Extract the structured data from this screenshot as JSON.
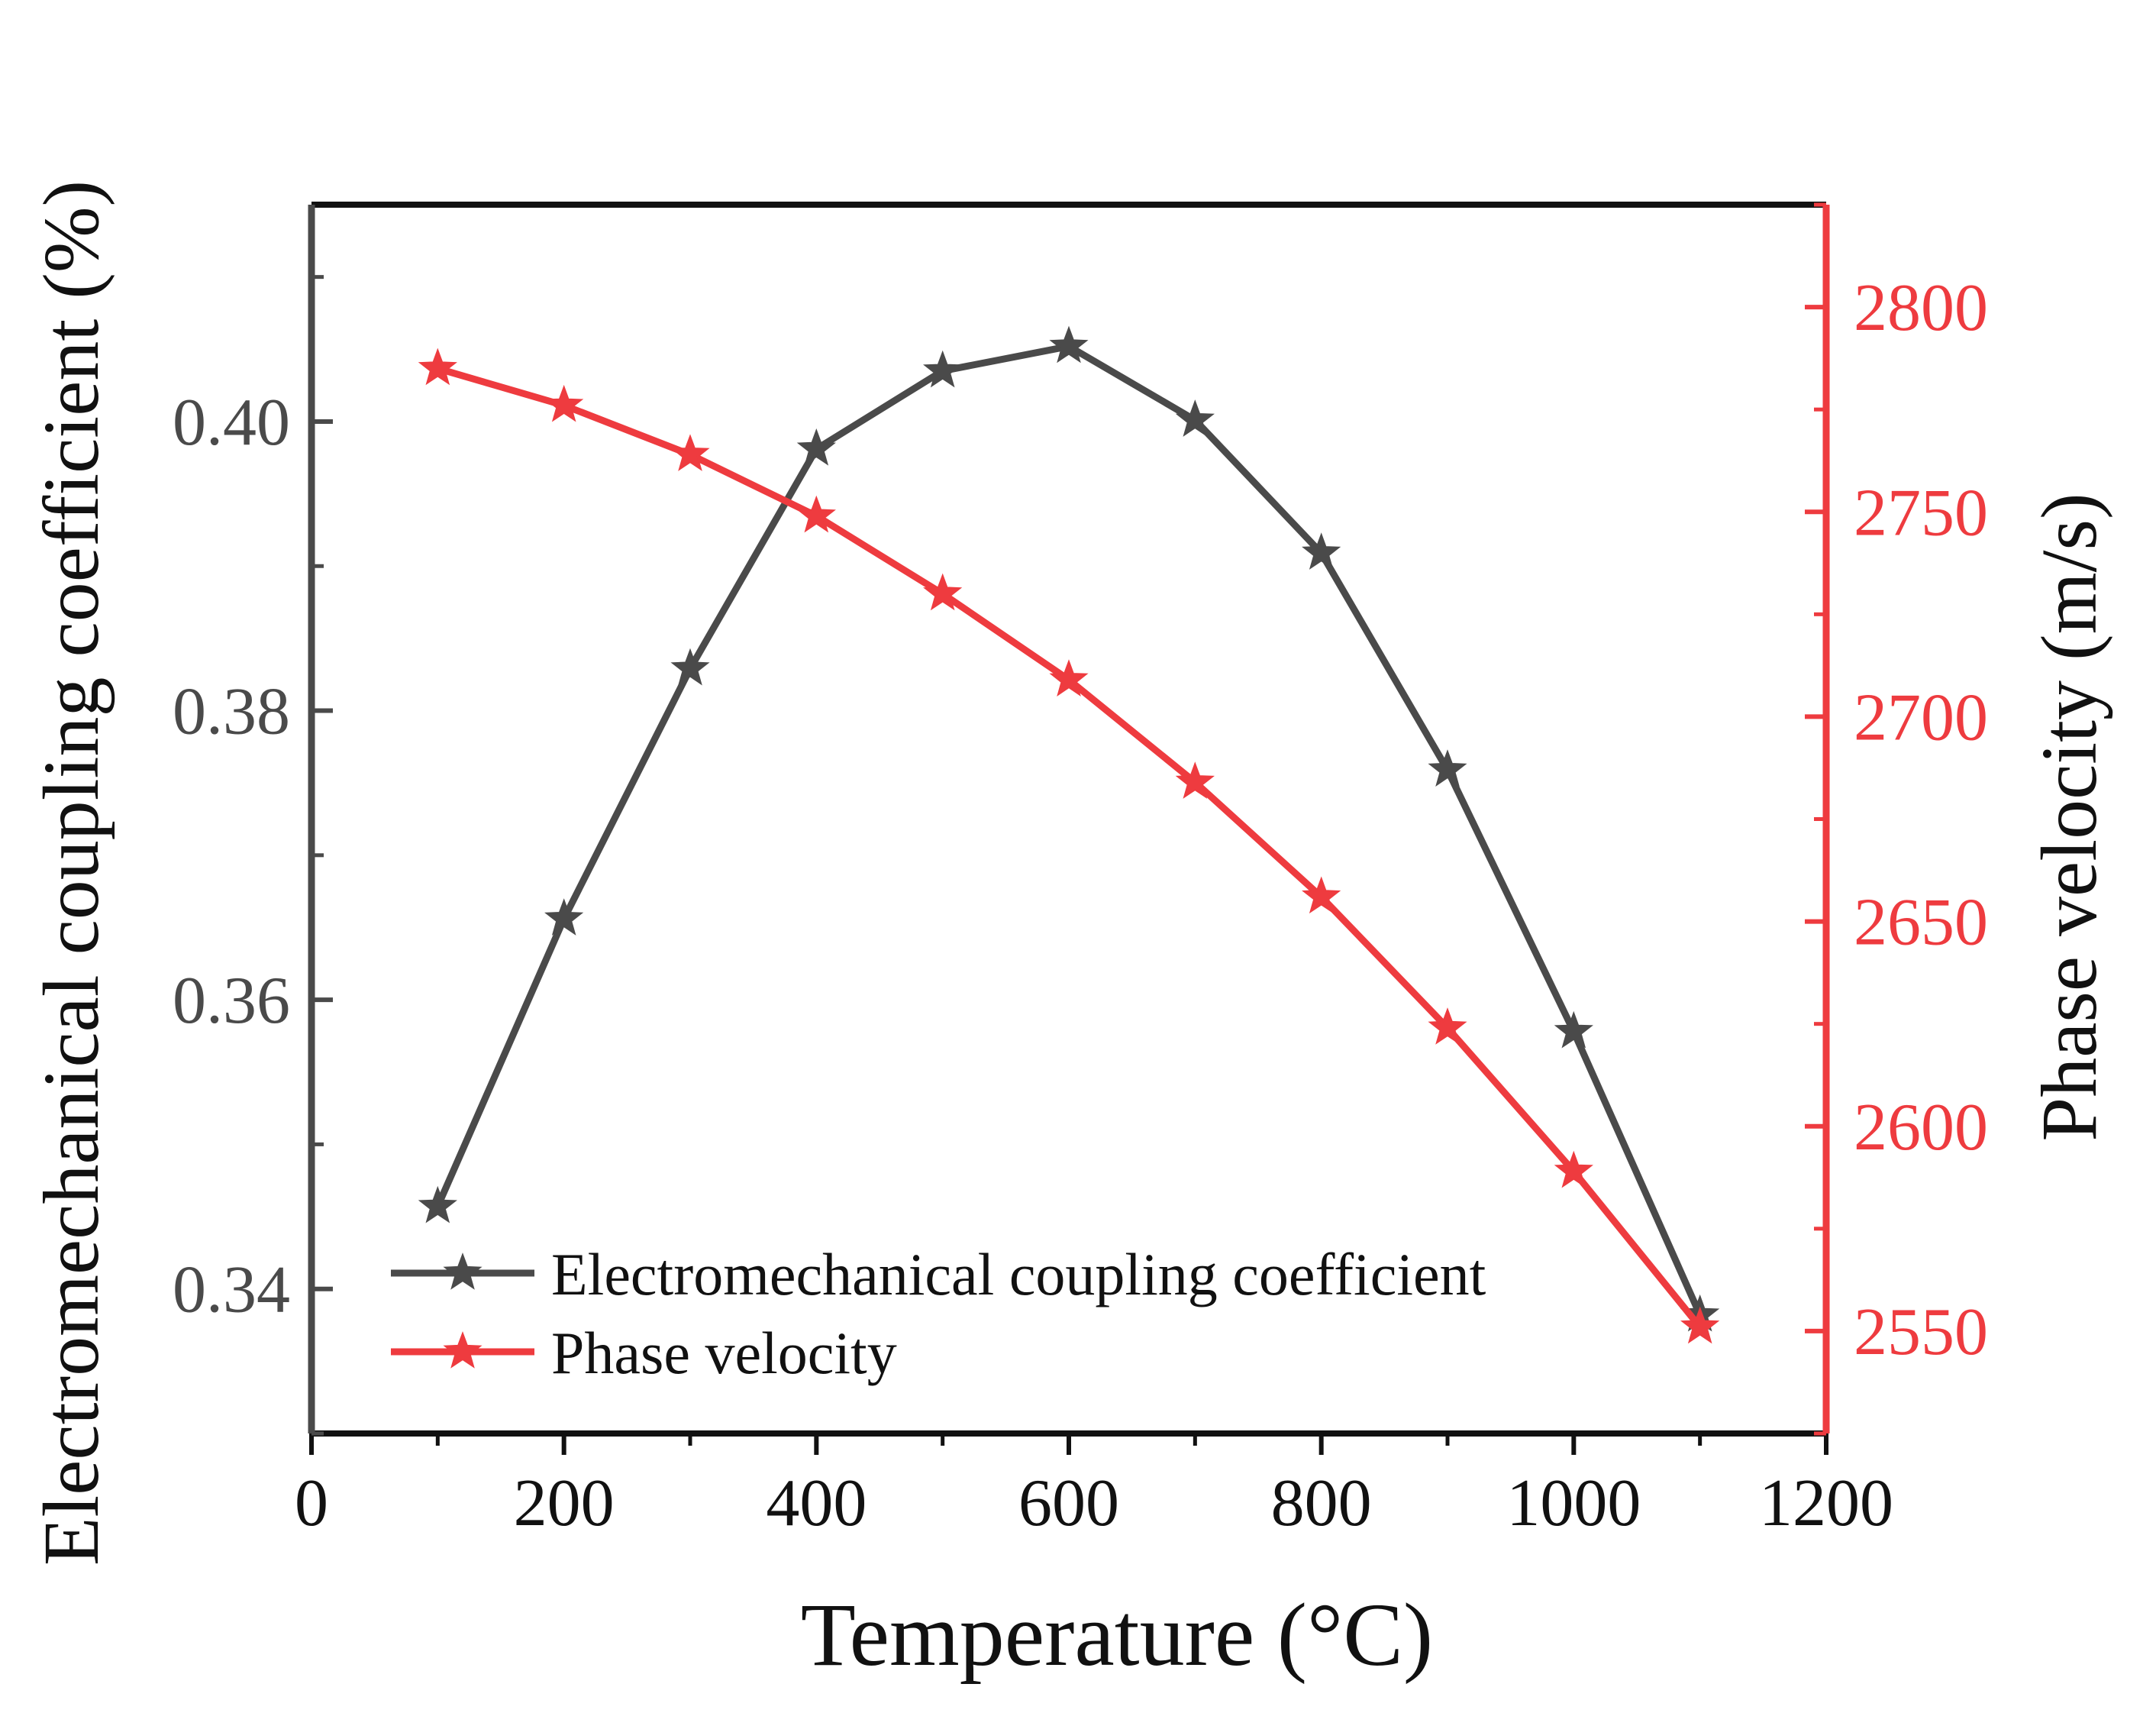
{
  "colors": {
    "left": "#4a4a4a",
    "right": "#ee3b3f",
    "axis": "#222222",
    "background": "#ffffff"
  },
  "chart_data": {
    "type": "line",
    "xlabel": "Temperature (°C)",
    "ylabel_left": "Electromechanical coupling coefficient (%)",
    "ylabel_right": "Phase velocity (m/s)",
    "xlim": [
      0,
      1200
    ],
    "ylim_left": [
      0.33,
      0.415
    ],
    "ylim_right": [
      2525,
      2825
    ],
    "x_ticks": [
      0,
      200,
      400,
      600,
      800,
      1000,
      1200
    ],
    "x_tick_labels": [
      "0",
      "200",
      "400",
      "600",
      "800",
      "1000",
      "1200"
    ],
    "y_left_ticks": [
      0.34,
      0.36,
      0.38,
      0.4
    ],
    "y_left_tick_labels": [
      "0.34",
      "0.36",
      "0.38",
      "0.40"
    ],
    "y_right_ticks": [
      2550,
      2600,
      2650,
      2700,
      2750,
      2800
    ],
    "y_right_tick_labels": [
      "2550",
      "2600",
      "2650",
      "2700",
      "2750",
      "2800"
    ],
    "x": [
      100,
      200,
      300,
      400,
      500,
      600,
      700,
      800,
      900,
      1000,
      1100
    ],
    "series": [
      {
        "name": "Electromechanical coupling coefficient",
        "axis": "left",
        "marker": "star",
        "values": [
          0.3457,
          0.3656,
          0.3829,
          0.3981,
          0.4035,
          0.4052,
          0.4001,
          0.3909,
          0.3759,
          0.3578,
          0.3382
        ]
      },
      {
        "name": "Phase velocity",
        "axis": "right",
        "marker": "star",
        "values": [
          2785,
          2776,
          2764,
          2749,
          2730,
          2709,
          2684,
          2656,
          2624,
          2589,
          2551
        ]
      }
    ],
    "legend": {
      "position": "bottom-left",
      "entries": [
        "Electromechanical coupling coefficient",
        "Phase velocity"
      ]
    }
  }
}
